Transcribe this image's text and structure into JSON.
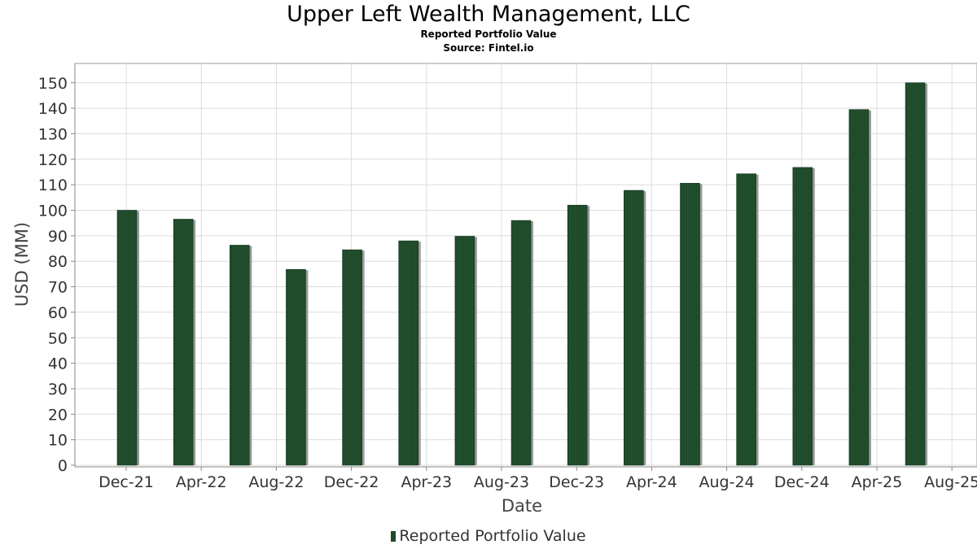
{
  "chart_data": {
    "type": "bar",
    "title": "Upper Left Wealth Management, LLC",
    "subtitle": "Reported Portfolio Value",
    "source": "Source: Fintel.io",
    "xlabel": "Date",
    "ylabel": "USD (MM)",
    "ylim": [
      0,
      157
    ],
    "yticks": [
      0,
      10,
      20,
      30,
      40,
      50,
      60,
      70,
      80,
      90,
      100,
      110,
      120,
      130,
      140,
      150
    ],
    "xticks": [
      "Dec-21",
      "Apr-22",
      "Aug-22",
      "Dec-22",
      "Apr-23",
      "Aug-23",
      "Dec-23",
      "Apr-24",
      "Aug-24",
      "Dec-24",
      "Apr-25",
      "Aug-25"
    ],
    "grid": true,
    "legend_position": "bottom",
    "series": [
      {
        "name": "Reported Portfolio Value",
        "color": "#1e4a2a",
        "x": [
          "2021-12-31",
          "2022-03-31",
          "2022-06-30",
          "2022-09-30",
          "2022-12-31",
          "2023-03-31",
          "2023-06-30",
          "2023-09-30",
          "2023-12-31",
          "2024-03-31",
          "2024-06-30",
          "2024-09-30",
          "2024-12-31",
          "2025-03-31",
          "2025-06-30"
        ],
        "values": [
          100,
          96.5,
          86.3,
          76.8,
          84.5,
          88,
          89.8,
          96,
          102,
          107.8,
          110.6,
          114.3,
          116.8,
          139.5,
          150
        ]
      }
    ]
  }
}
